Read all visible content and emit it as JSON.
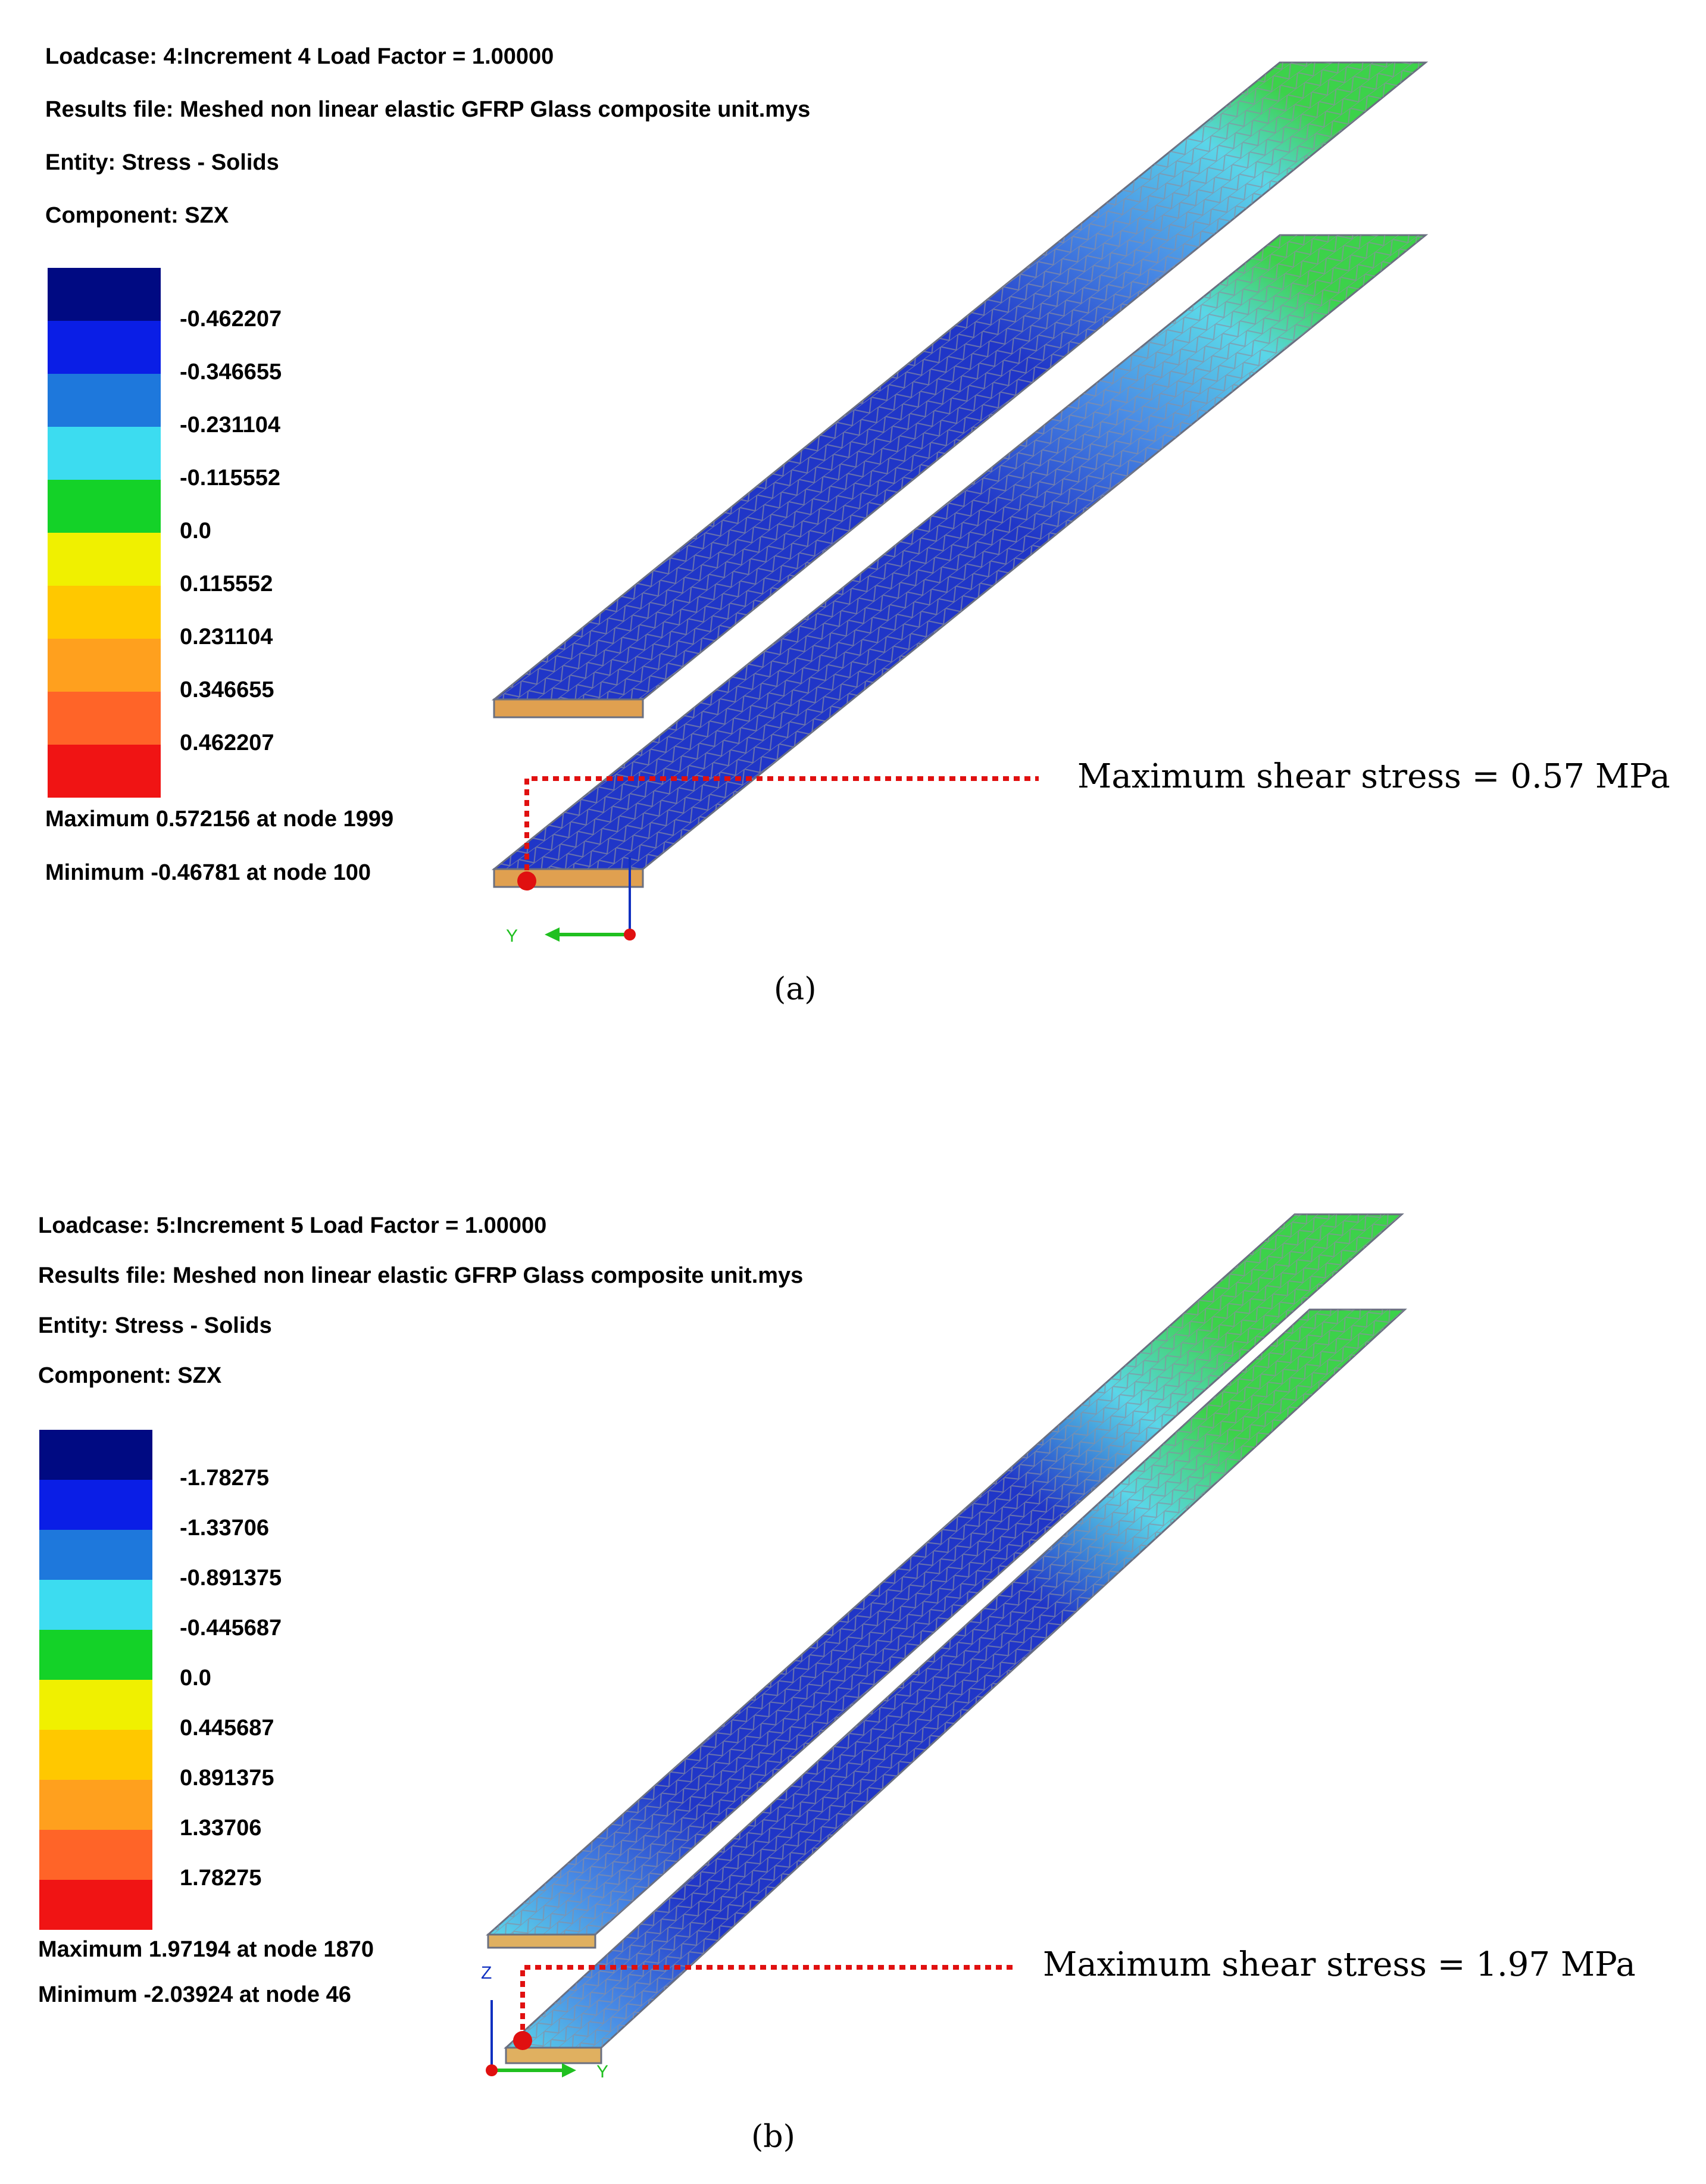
{
  "panels": [
    {
      "loadcase": "Loadcase: 4:Increment 4 Load Factor = 1.00000",
      "results_file": "Results file: Meshed non linear elastic GFRP Glass composite unit.mys",
      "entity": "Entity: Stress - Solids",
      "component": "Component: SZX",
      "legend_values": [
        "-0.462207",
        "-0.346655",
        "-0.231104",
        "-0.115552",
        "0.0",
        "0.115552",
        "0.231104",
        "0.346655",
        "0.462207"
      ],
      "maximum": "Maximum 0.572156 at node 1999",
      "minimum": "Minimum -0.46781 at node 100",
      "callout": "Maximum shear stress = 0.57  MPa",
      "axis_labels": {
        "left": "Y",
        "top": ""
      },
      "caption": "(a)"
    },
    {
      "loadcase": "Loadcase: 5:Increment 5 Load Factor = 1.00000",
      "results_file": "Results file: Meshed non linear elastic GFRP Glass composite unit.mys",
      "entity": "Entity: Stress - Solids",
      "component": "Component: SZX",
      "legend_values": [
        "-1.78275",
        "-1.33706",
        "-0.891375",
        "-0.445687",
        "0.0",
        "0.445687",
        "0.891375",
        "1.33706",
        "1.78275"
      ],
      "maximum": "Maximum 1.97194 at node 1870",
      "minimum": "Minimum -2.03924 at node 46",
      "callout": "Maximum shear stress = 1.97  MPa",
      "axis_labels": {
        "left": "Z",
        "right": "Y"
      },
      "caption": "(b)"
    }
  ],
  "legend_colors": [
    "#000a82",
    "#0a1ee6",
    "#1e78dc",
    "#3cdcf0",
    "#14d228",
    "#f0f000",
    "#ffc800",
    "#ffa01e",
    "#ff6428",
    "#f01414"
  ],
  "colors": {
    "leader_line": "#e01010",
    "marker": "#e01010",
    "mesh_dark": "#2036c8",
    "mesh_mid": "#4a8ee6",
    "mesh_light": "#5ad6e8",
    "mesh_green": "#3cd24a"
  }
}
